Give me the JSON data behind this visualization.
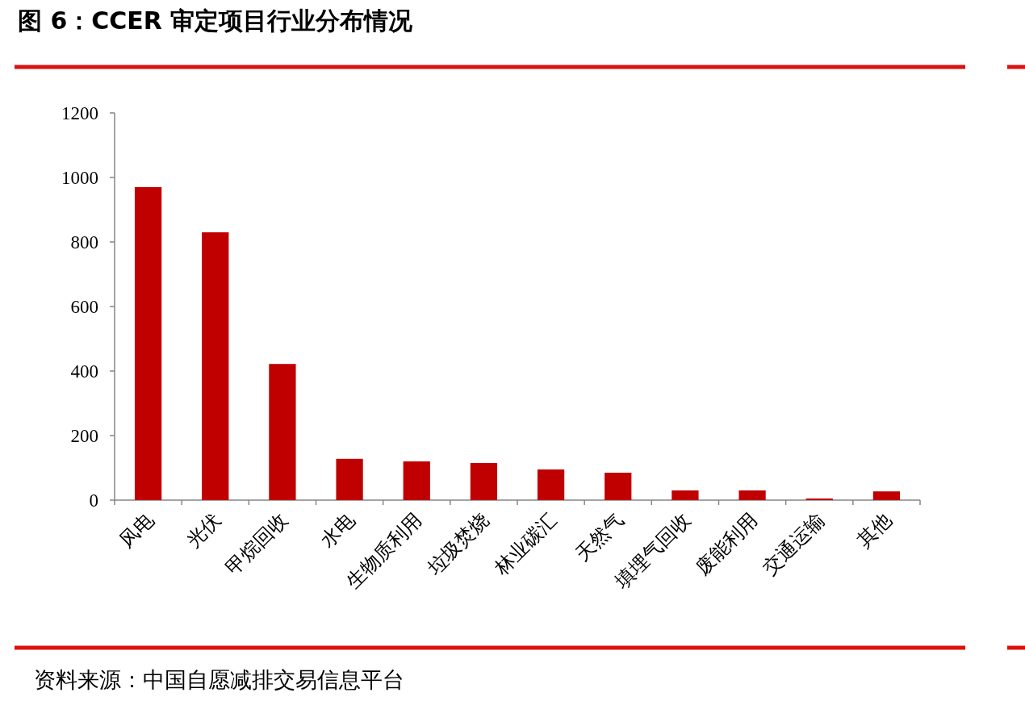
{
  "chart_data": {
    "type": "bar",
    "title": "图 6：CCER 审定项目行业分布情况",
    "categories": [
      "风电",
      "光伏",
      "甲烷回收",
      "水电",
      "生物质利用",
      "垃圾焚烧",
      "林业碳汇",
      "天然气",
      "填埋气回收",
      "废能利用",
      "交通运输",
      "其他"
    ],
    "values": [
      970,
      830,
      422,
      128,
      120,
      115,
      95,
      85,
      30,
      30,
      5,
      27
    ],
    "color": "#c00000",
    "ylim": [
      0,
      1200
    ],
    "yticks": [
      0,
      200,
      400,
      600,
      800,
      1000,
      1200
    ],
    "grid": false,
    "annotations": [
      "资料来源：中国自愿减排交易信息平台"
    ]
  }
}
